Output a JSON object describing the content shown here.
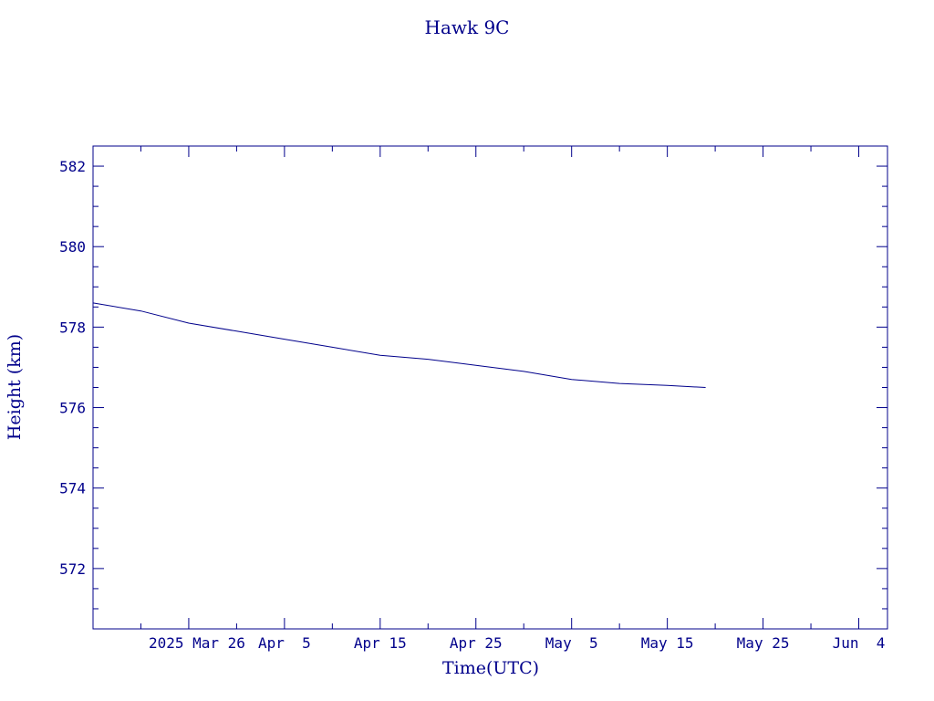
{
  "chart_data": {
    "type": "line",
    "title": "Hawk 9C",
    "xlabel": "Time(UTC)",
    "ylabel": "Height (km)",
    "xlim": [
      "2025-03-16",
      "2025-06-07"
    ],
    "ylim": [
      570.5,
      582.5
    ],
    "x_ticks": [
      {
        "date": "2025-03-26",
        "label": "2025 Mar 26"
      },
      {
        "date": "2025-04-05",
        "label": "Apr  5"
      },
      {
        "date": "2025-04-15",
        "label": "Apr 15"
      },
      {
        "date": "2025-04-25",
        "label": "Apr 25"
      },
      {
        "date": "2025-05-05",
        "label": "May  5"
      },
      {
        "date": "2025-05-15",
        "label": "May 15"
      },
      {
        "date": "2025-05-25",
        "label": "May 25"
      },
      {
        "date": "2025-06-04",
        "label": "Jun  4"
      }
    ],
    "y_ticks": [
      572,
      574,
      576,
      578,
      580,
      582
    ],
    "grid": false,
    "series": [
      {
        "x": [
          "2025-03-16",
          "2025-03-21",
          "2025-03-26",
          "2025-03-31",
          "2025-04-05",
          "2025-04-10",
          "2025-04-15",
          "2025-04-20",
          "2025-04-25",
          "2025-04-30",
          "2025-05-05",
          "2025-05-10",
          "2025-05-15",
          "2025-05-19"
        ],
        "y": [
          578.6,
          578.4,
          578.1,
          577.9,
          577.7,
          577.5,
          577.3,
          577.2,
          577.05,
          576.9,
          576.7,
          576.6,
          576.55,
          576.5
        ]
      }
    ]
  }
}
